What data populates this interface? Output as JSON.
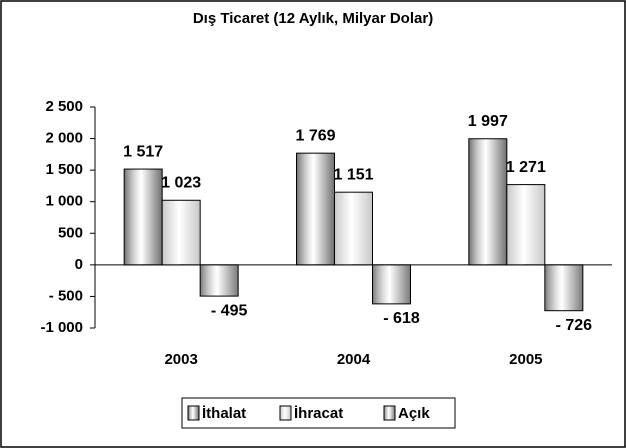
{
  "chart_data": {
    "type": "bar",
    "title": "Dış Ticaret (12 Aylık, Milyar Dolar)",
    "categories": [
      "2003",
      "2004",
      "2005"
    ],
    "series": [
      {
        "name": "İthalat",
        "color": "#707070",
        "values": [
          1517,
          1769,
          1997
        ],
        "value_labels": [
          "1 517",
          "1 769",
          "1 997"
        ]
      },
      {
        "name": "İhracat",
        "color": "#c8c8c8",
        "values": [
          1023,
          1151,
          1271
        ],
        "value_labels": [
          "1 023",
          "1 151",
          "1 271"
        ]
      },
      {
        "name": "Açık",
        "color": "#7a7a7a",
        "values": [
          -495,
          -618,
          -726
        ],
        "value_labels": [
          "- 495",
          "- 618",
          "- 726"
        ]
      }
    ],
    "ylim": [
      -1000,
      2500
    ],
    "yticks": [
      {
        "value": -1000,
        "label": "-1 000"
      },
      {
        "value": -500,
        "label": "- 500"
      },
      0,
      500,
      {
        "value": 1000,
        "label": "1 000"
      },
      {
        "value": 1500,
        "label": "1 500"
      },
      {
        "value": 2000,
        "label": "2 000"
      },
      {
        "value": 2500,
        "label": "2 500"
      }
    ],
    "legend": "bottom"
  }
}
